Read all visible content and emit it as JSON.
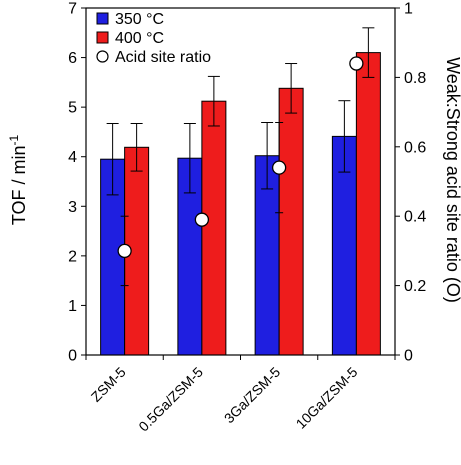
{
  "chart_data": {
    "type": "bar",
    "categories": [
      "ZSM-5",
      "0.5Ga/ZSM-5",
      "3Ga/ZSM-5",
      "10Ga/ZSM-5"
    ],
    "series": [
      {
        "name": "350 °C",
        "color": "#1f1fe0",
        "values": [
          3.95,
          3.97,
          4.02,
          4.41
        ],
        "errors": [
          0.72,
          0.7,
          0.67,
          0.72
        ]
      },
      {
        "name": "400 °C",
        "color": "#ee1c1c",
        "values": [
          4.19,
          5.12,
          5.38,
          6.1
        ],
        "errors": [
          0.48,
          0.5,
          0.5,
          0.5
        ]
      }
    ],
    "secondary_series": {
      "name": "Acid site ratio",
      "marker": "open-circle",
      "values": [
        0.3,
        0.39,
        0.54,
        0.84
      ],
      "errors": [
        0.1,
        0.0,
        0.13,
        0.0
      ]
    },
    "ylabel": "TOF / min",
    "ylabel_superscript": "-1",
    "y2label": "Weak:Strong acid site ratio (O)",
    "ylim": [
      0,
      7
    ],
    "yticks": [
      "0",
      "1",
      "2",
      "3",
      "4",
      "5",
      "6",
      "7"
    ],
    "y2lim": [
      0,
      1
    ],
    "y2ticks": [
      "0",
      "0.2",
      "0.4",
      "0.6",
      "0.8",
      "1"
    ],
    "legend": {
      "position": "top-left",
      "entries": [
        "350 °C",
        "400 °C",
        "Acid site ratio"
      ]
    },
    "grid": false
  }
}
